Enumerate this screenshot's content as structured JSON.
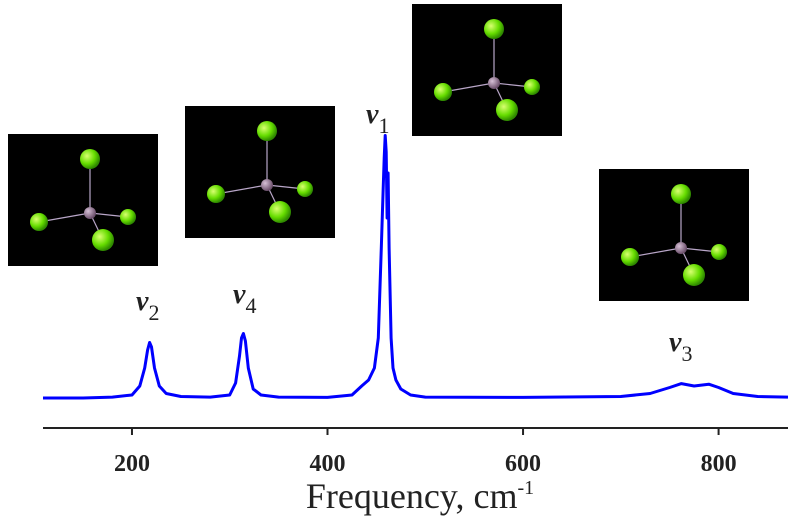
{
  "chart_data": {
    "type": "line",
    "x_label": "Frequency, cm",
    "x_label_sup": "-1",
    "x": [
      109,
      150,
      180,
      200,
      208,
      213,
      216,
      218,
      220,
      223,
      228,
      235,
      250,
      280,
      300,
      306,
      310,
      312,
      314,
      316,
      319,
      324,
      332,
      350,
      400,
      425,
      435,
      442,
      448,
      452,
      455,
      457,
      458,
      459,
      460,
      461,
      462,
      463,
      465,
      467,
      470,
      475,
      485,
      500,
      600,
      700,
      730,
      750,
      762,
      775,
      790,
      800,
      815,
      840,
      871
    ],
    "series": [
      {
        "color": "#0000ff",
        "values": [
          10,
          10,
          10.3,
          11,
          14,
          20,
          26,
          28.5,
          27,
          20,
          14,
          11.5,
          10.5,
          10.3,
          11,
          15,
          24,
          30,
          31.5,
          29,
          20,
          13,
          11,
          10.3,
          10.2,
          11,
          14,
          16,
          20,
          30,
          60,
          80,
          90,
          97.5,
          92,
          70,
          85,
          60,
          30,
          20,
          16,
          13,
          11,
          10.3,
          10.2,
          10.5,
          11.5,
          13.5,
          14.8,
          14,
          14.6,
          13.5,
          11.5,
          10.5,
          10.3
        ]
      }
    ],
    "xlim": [
      109,
      871
    ],
    "ylim": [
      0,
      100
    ],
    "xticks": [
      200,
      400,
      600,
      800
    ],
    "annotations": [
      {
        "symbol": "ν",
        "subscript": "2"
      },
      {
        "symbol": "ν",
        "subscript": "4"
      },
      {
        "symbol": "ν",
        "subscript": "1"
      },
      {
        "symbol": "ν",
        "subscript": "3"
      }
    ]
  }
}
